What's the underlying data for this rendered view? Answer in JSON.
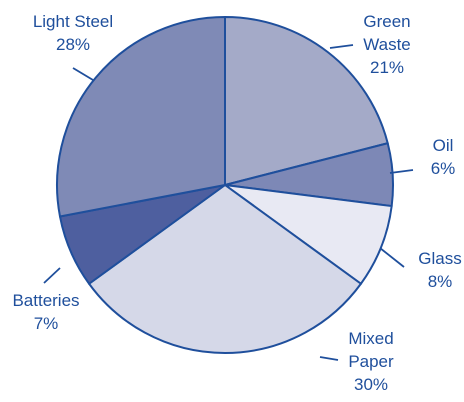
{
  "chart_data": {
    "type": "pie",
    "title": "",
    "start_angle_deg": 90,
    "direction": "clockwise",
    "outline_color": "#1f4f9c",
    "label_color": "#1f4f9c",
    "slices": [
      {
        "name_lines": [
          "Green",
          "Waste"
        ],
        "value_text": "21%",
        "value": 21,
        "color": "#a4aac8"
      },
      {
        "name_lines": [
          "Oil"
        ],
        "value_text": "6%",
        "value": 6,
        "color": "#7d88b6"
      },
      {
        "name_lines": [
          "Glass"
        ],
        "value_text": "8%",
        "value": 8,
        "color": "#e8e9f3"
      },
      {
        "name_lines": [
          "Mixed",
          "Paper"
        ],
        "value_text": "30%",
        "value": 30,
        "color": "#d5d8e8"
      },
      {
        "name_lines": [
          "Batteries"
        ],
        "value_text": "7%",
        "value": 7,
        "color": "#4e5f9f"
      },
      {
        "name_lines": [
          "Light Steel"
        ],
        "value_text": "28%",
        "value": 28,
        "color": "#7f8ab6"
      }
    ]
  }
}
